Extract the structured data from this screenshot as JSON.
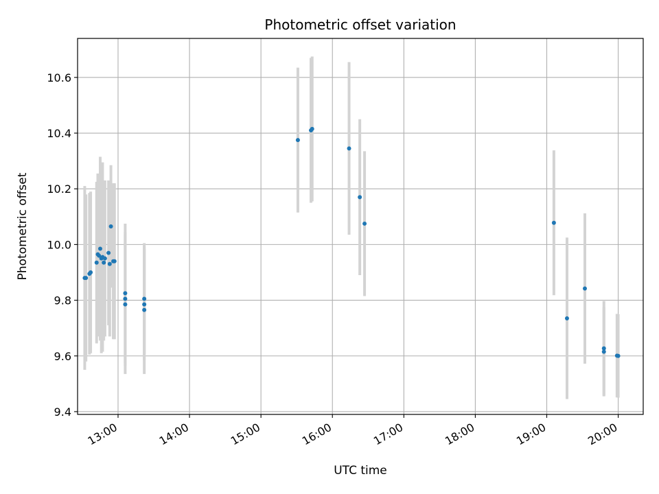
{
  "chart_data": {
    "type": "scatter",
    "title": "Photometric offset variation",
    "xlabel": "UTC time",
    "ylabel": "Photometric offset",
    "grid": true,
    "xlim": [
      "12:26",
      "20:21"
    ],
    "ylim": [
      9.39,
      10.74
    ],
    "x_ticks": [
      "13:00",
      "14:00",
      "15:00",
      "16:00",
      "17:00",
      "18:00",
      "19:00",
      "20:00"
    ],
    "y_ticks": [
      "9.4",
      "9.6",
      "9.8",
      "10.0",
      "10.2",
      "10.4",
      "10.6"
    ],
    "colors": {
      "point": "#1f77b4",
      "errorbar": "#d3d3d3",
      "grid": "#b0b0b0"
    },
    "series": [
      {
        "points": [
          {
            "x": "12:32",
            "y": 9.88,
            "err": 0.33
          },
          {
            "x": "12:33",
            "y": 9.88,
            "err": 0.3
          },
          {
            "x": "12:36",
            "y": 9.895,
            "err": 0.29
          },
          {
            "x": "12:37",
            "y": 9.9,
            "err": 0.29
          },
          {
            "x": "12:42",
            "y": 9.935,
            "err": 0.29
          },
          {
            "x": "12:43",
            "y": 9.965,
            "err": 0.29
          },
          {
            "x": "12:44",
            "y": 9.96,
            "err": 0.29
          },
          {
            "x": "12:45",
            "y": 9.985,
            "err": 0.33
          },
          {
            "x": "12:46",
            "y": 9.95,
            "err": 0.34
          },
          {
            "x": "12:47",
            "y": 9.955,
            "err": 0.34
          },
          {
            "x": "12:48",
            "y": 9.935,
            "err": 0.28
          },
          {
            "x": "12:49",
            "y": 9.95,
            "err": 0.28
          },
          {
            "x": "12:52",
            "y": 9.97,
            "err": 0.26
          },
          {
            "x": "12:53",
            "y": 9.93,
            "err": 0.26
          },
          {
            "x": "12:54",
            "y": 10.065,
            "err": 0.22
          },
          {
            "x": "12:56",
            "y": 9.94,
            "err": 0.28
          },
          {
            "x": "12:57",
            "y": 9.94,
            "err": 0.28
          },
          {
            "x": "13:06",
            "y": 9.825,
            "err": 0.25
          },
          {
            "x": "13:06",
            "y": 9.805,
            "err": 0.24
          },
          {
            "x": "13:06",
            "y": 9.785,
            "err": 0.25
          },
          {
            "x": "13:22",
            "y": 9.805,
            "err": 0.2
          },
          {
            "x": "13:22",
            "y": 9.785,
            "err": 0.2
          },
          {
            "x": "13:22",
            "y": 9.765,
            "err": 0.23
          },
          {
            "x": "15:31",
            "y": 10.375,
            "err": 0.26
          },
          {
            "x": "15:42",
            "y": 10.41,
            "err": 0.26
          },
          {
            "x": "15:43",
            "y": 10.415,
            "err": 0.26
          },
          {
            "x": "16:14",
            "y": 10.345,
            "err": 0.31
          },
          {
            "x": "16:23",
            "y": 10.17,
            "err": 0.28
          },
          {
            "x": "16:27",
            "y": 10.075,
            "err": 0.26
          },
          {
            "x": "19:06",
            "y": 10.078,
            "err": 0.26
          },
          {
            "x": "19:17",
            "y": 9.735,
            "err": 0.29
          },
          {
            "x": "19:32",
            "y": 9.842,
            "err": 0.27
          },
          {
            "x": "19:48",
            "y": 9.627,
            "err": 0.17
          },
          {
            "x": "19:48",
            "y": 9.615,
            "err": 0.16
          },
          {
            "x": "19:59",
            "y": 9.601,
            "err": 0.15
          },
          {
            "x": "20:00",
            "y": 9.6,
            "err": 0.15
          }
        ]
      }
    ]
  }
}
